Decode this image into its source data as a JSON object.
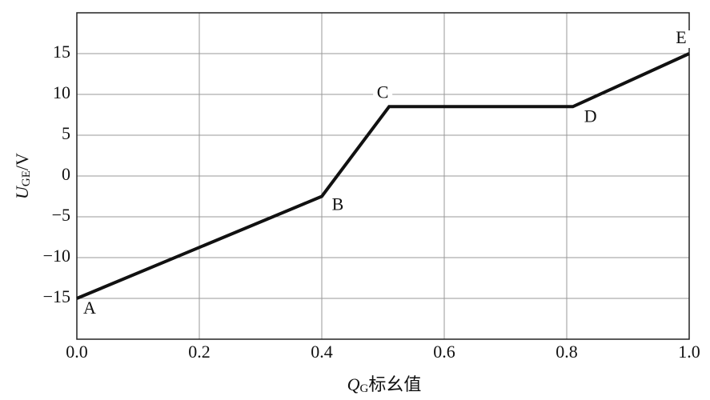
{
  "chart_data": {
    "type": "line",
    "x": [
      0.0,
      0.4,
      0.51,
      0.81,
      1.0
    ],
    "series": [
      {
        "name": "U_GE",
        "color": "#111111",
        "values": [
          -15,
          -2.5,
          8.5,
          8.5,
          15
        ]
      }
    ],
    "point_labels": [
      "A",
      "B",
      "C",
      "D",
      "E"
    ],
    "xlim": [
      0,
      1
    ],
    "ylim": [
      -20,
      20
    ],
    "xticks": [
      {
        "value": 0,
        "label": "0.0"
      },
      0.2,
      0.4,
      0.6,
      0.8,
      {
        "value": 1,
        "label": "1.0"
      }
    ],
    "yticks": [
      {
        "value": -15,
        "label": "−15"
      },
      {
        "value": -10,
        "label": "−10"
      },
      {
        "value": -5,
        "label": "−5"
      },
      0,
      5,
      10,
      15
    ],
    "ylabel": {
      "symbol": "U",
      "subscript": "GE",
      "unit": "/V"
    },
    "xlabel": {
      "symbol": "Q",
      "subscript": "G",
      "text": "标幺值"
    },
    "grid": true
  }
}
